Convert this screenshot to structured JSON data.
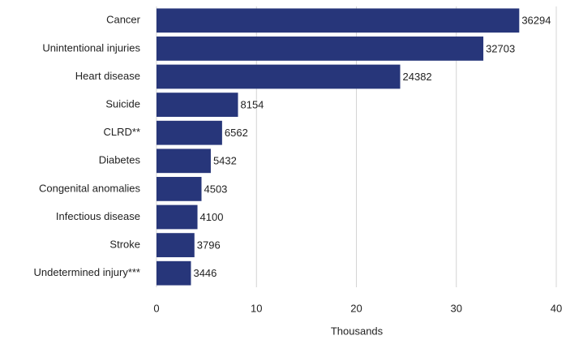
{
  "chart_data": {
    "type": "bar",
    "orientation": "horizontal",
    "categories": [
      "Cancer",
      "Unintentional injuries",
      "Heart disease",
      "Suicide",
      "CLRD**",
      "Diabetes",
      "Congenital anomalies",
      "Infectious disease",
      "Stroke",
      "Undetermined injury***"
    ],
    "values": [
      36.294,
      32.703,
      24.382,
      8.154,
      6.562,
      5.432,
      4.503,
      4.1,
      3.796,
      3.446
    ],
    "value_labels": [
      "36294",
      "32703",
      "24382",
      "8154",
      "6562",
      "5432",
      "4503",
      "4100",
      "3796",
      "3446"
    ],
    "color": "#27367a",
    "xlabel": "Thousands",
    "xlim": [
      0,
      40
    ],
    "xticks": [
      0,
      10,
      20,
      30,
      40
    ],
    "grid": true
  }
}
